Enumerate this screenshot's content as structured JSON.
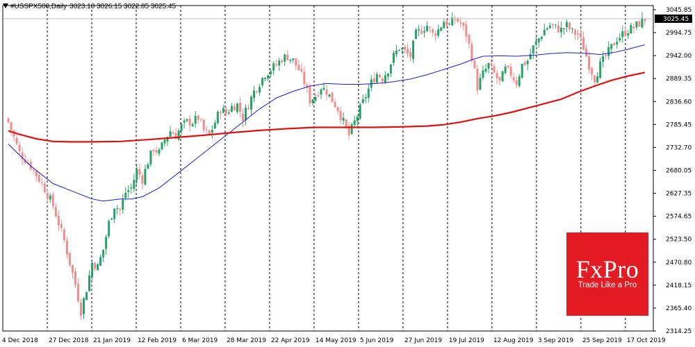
{
  "header": {
    "symbol_icon": "triangle-down-icon",
    "symbol": "#USSPX500,Daily",
    "ohlc": "3023.10 3026.15 3022.85 3025.45"
  },
  "logo": {
    "brand": "FxPro",
    "slogan": "Trade Like a Pro"
  },
  "colors": {
    "bull": "#26a269",
    "bear": "#f08c8c",
    "ma_fast": "#1c1cd1",
    "ma_slow": "#e01010",
    "last_bg": "#000000",
    "grid": "#000000"
  },
  "chart_data": {
    "type": "candlestick",
    "title": "#USSPX500,Daily",
    "ylim": [
      2314.25,
      3045.85
    ],
    "y_ticks": [
      "3045.85",
      "2994.75",
      "2942.00",
      "2889.35",
      "2836.60",
      "2785.45",
      "2732.70",
      "2680.05",
      "2627.35",
      "2574.65",
      "2523.50",
      "2470.80",
      "2418.15",
      "2365.40",
      "2314.25"
    ],
    "x_ticks": [
      "4 Dec 2018",
      "27 Dec 2018",
      "21 Jan 2019",
      "12 Feb 2019",
      "6 Mar 2019",
      "28 Mar 2019",
      "22 Apr 2019",
      "14 May 2019",
      "5 Jun 2019",
      "27 Jun 2019",
      "19 Jul 2019",
      "12 Aug 2019",
      "3 Sep 2019",
      "25 Sep 2019",
      "17 Oct 2019"
    ],
    "last_price_label": "3025.45",
    "grid": "vertical dotted separators",
    "close_path": [
      [
        0,
        2790
      ],
      [
        4,
        2720
      ],
      [
        8,
        2690
      ],
      [
        12,
        2650
      ],
      [
        16,
        2600
      ],
      [
        20,
        2520
      ],
      [
        24,
        2420
      ],
      [
        26,
        2360
      ],
      [
        28,
        2410
      ],
      [
        30,
        2470
      ],
      [
        32,
        2460
      ],
      [
        34,
        2500
      ],
      [
        36,
        2560
      ],
      [
        38,
        2600
      ],
      [
        40,
        2590
      ],
      [
        42,
        2630
      ],
      [
        44,
        2640
      ],
      [
        46,
        2680
      ],
      [
        48,
        2660
      ],
      [
        50,
        2700
      ],
      [
        52,
        2730
      ],
      [
        54,
        2720
      ],
      [
        56,
        2750
      ],
      [
        58,
        2770
      ],
      [
        60,
        2760
      ],
      [
        62,
        2780
      ],
      [
        64,
        2790
      ],
      [
        66,
        2790
      ],
      [
        68,
        2800
      ],
      [
        70,
        2770
      ],
      [
        72,
        2760
      ],
      [
        74,
        2790
      ],
      [
        76,
        2820
      ],
      [
        78,
        2810
      ],
      [
        80,
        2825
      ],
      [
        82,
        2830
      ],
      [
        84,
        2800
      ],
      [
        86,
        2830
      ],
      [
        88,
        2860
      ],
      [
        90,
        2880
      ],
      [
        92,
        2900
      ],
      [
        94,
        2910
      ],
      [
        96,
        2920
      ],
      [
        98,
        2935
      ],
      [
        100,
        2940
      ],
      [
        102,
        2930
      ],
      [
        104,
        2910
      ],
      [
        106,
        2880
      ],
      [
        108,
        2840
      ],
      [
        110,
        2850
      ],
      [
        112,
        2870
      ],
      [
        114,
        2860
      ],
      [
        116,
        2840
      ],
      [
        118,
        2820
      ],
      [
        120,
        2790
      ],
      [
        122,
        2760
      ],
      [
        124,
        2790
      ],
      [
        126,
        2820
      ],
      [
        128,
        2850
      ],
      [
        130,
        2880
      ],
      [
        132,
        2900
      ],
      [
        134,
        2890
      ],
      [
        136,
        2910
      ],
      [
        138,
        2940
      ],
      [
        140,
        2960
      ],
      [
        142,
        2950
      ],
      [
        144,
        2940
      ],
      [
        146,
        2990
      ],
      [
        148,
        3000
      ],
      [
        150,
        3010
      ],
      [
        152,
        2990
      ],
      [
        154,
        3000
      ],
      [
        156,
        3020
      ],
      [
        158,
        3010
      ],
      [
        160,
        3025
      ],
      [
        162,
        3015
      ],
      [
        164,
        2990
      ],
      [
        166,
        2940
      ],
      [
        168,
        2870
      ],
      [
        170,
        2900
      ],
      [
        172,
        2920
      ],
      [
        174,
        2900
      ],
      [
        176,
        2880
      ],
      [
        178,
        2910
      ],
      [
        180,
        2900
      ],
      [
        182,
        2880
      ],
      [
        184,
        2920
      ],
      [
        186,
        2930
      ],
      [
        188,
        2960
      ],
      [
        190,
        2980
      ],
      [
        192,
        3000
      ],
      [
        194,
        3010
      ],
      [
        196,
        3005
      ],
      [
        198,
        3000
      ],
      [
        200,
        3010
      ],
      [
        202,
        2995
      ],
      [
        204,
        2990
      ],
      [
        206,
        2960
      ],
      [
        208,
        2920
      ],
      [
        210,
        2890
      ],
      [
        212,
        2920
      ],
      [
        214,
        2940
      ],
      [
        216,
        2960
      ],
      [
        218,
        2980
      ],
      [
        220,
        2990
      ],
      [
        222,
        3000
      ],
      [
        224,
        3005
      ],
      [
        226,
        3015
      ],
      [
        228,
        3025
      ]
    ],
    "series": [
      {
        "name": "",
        "type": "line",
        "color": "#1c1cd1",
        "points": [
          [
            0,
            2740
          ],
          [
            8,
            2690
          ],
          [
            16,
            2650
          ],
          [
            24,
            2630
          ],
          [
            30,
            2615
          ],
          [
            34,
            2610
          ],
          [
            40,
            2615
          ],
          [
            44,
            2615
          ],
          [
            48,
            2620
          ],
          [
            54,
            2640
          ],
          [
            60,
            2670
          ],
          [
            66,
            2700
          ],
          [
            72,
            2730
          ],
          [
            78,
            2760
          ],
          [
            84,
            2790
          ],
          [
            90,
            2820
          ],
          [
            96,
            2845
          ],
          [
            102,
            2860
          ],
          [
            108,
            2872
          ],
          [
            114,
            2878
          ],
          [
            120,
            2876
          ],
          [
            126,
            2876
          ],
          [
            132,
            2878
          ],
          [
            138,
            2882
          ],
          [
            144,
            2888
          ],
          [
            150,
            2898
          ],
          [
            156,
            2910
          ],
          [
            162,
            2922
          ],
          [
            166,
            2932
          ],
          [
            170,
            2940
          ],
          [
            176,
            2941
          ],
          [
            182,
            2940
          ],
          [
            188,
            2942
          ],
          [
            194,
            2946
          ],
          [
            200,
            2948
          ],
          [
            206,
            2947
          ],
          [
            212,
            2944
          ],
          [
            218,
            2950
          ],
          [
            222,
            2956
          ],
          [
            228,
            2966
          ]
        ]
      },
      {
        "name": "",
        "type": "line",
        "color": "#e01010",
        "points": [
          [
            0,
            2770
          ],
          [
            4,
            2762
          ],
          [
            10,
            2752
          ],
          [
            16,
            2746
          ],
          [
            22,
            2745
          ],
          [
            30,
            2745
          ],
          [
            40,
            2746
          ],
          [
            50,
            2750
          ],
          [
            60,
            2755
          ],
          [
            70,
            2760
          ],
          [
            80,
            2766
          ],
          [
            90,
            2771
          ],
          [
            100,
            2775
          ],
          [
            110,
            2778
          ],
          [
            120,
            2778
          ],
          [
            130,
            2778
          ],
          [
            140,
            2779
          ],
          [
            150,
            2781
          ],
          [
            156,
            2784
          ],
          [
            162,
            2790
          ],
          [
            168,
            2798
          ],
          [
            174,
            2804
          ],
          [
            180,
            2812
          ],
          [
            186,
            2822
          ],
          [
            192,
            2832
          ],
          [
            198,
            2842
          ],
          [
            204,
            2858
          ],
          [
            210,
            2872
          ],
          [
            216,
            2885
          ],
          [
            222,
            2895
          ],
          [
            228,
            2903
          ]
        ]
      }
    ]
  }
}
